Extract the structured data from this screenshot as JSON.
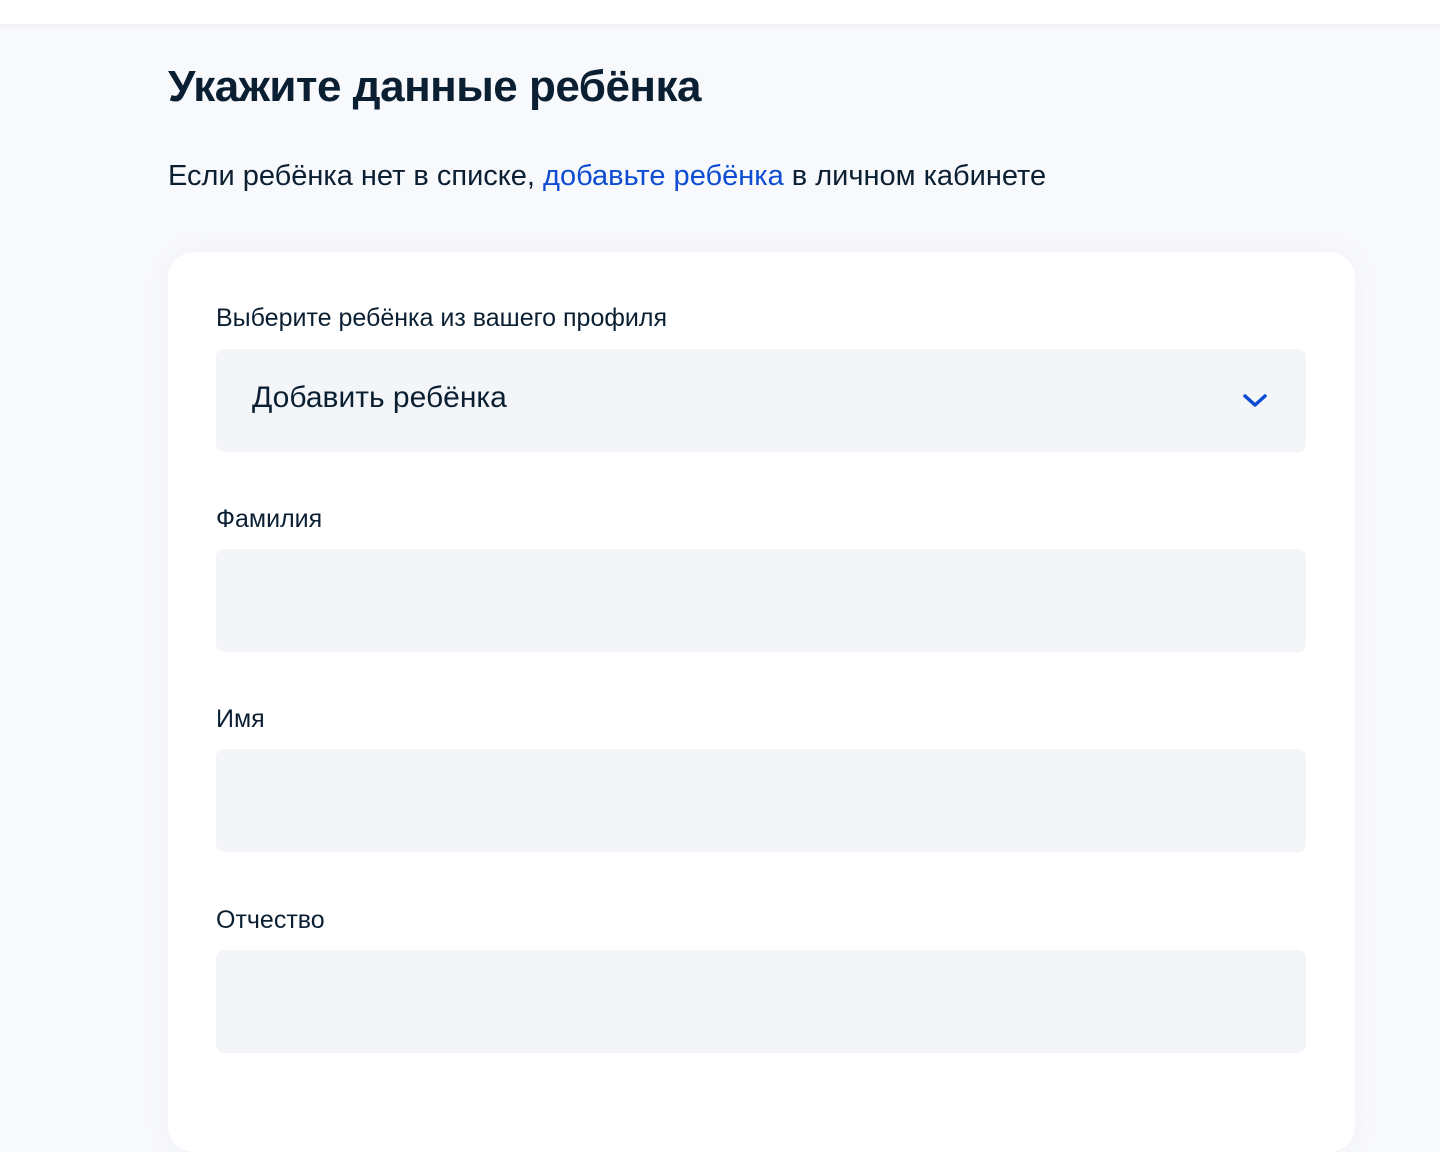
{
  "page": {
    "title": "Укажите данные ребёнка",
    "subtitle_before": "Если ребёнка нет в списке, ",
    "subtitle_link": "добавьте ребёнка",
    "subtitle_after": " в личном кабинете"
  },
  "form": {
    "child_select": {
      "label": "Выберите ребёнка из вашего профиля",
      "value": "Добавить ребёнка",
      "icon": "chevron-down-icon"
    },
    "last_name": {
      "label": "Фамилия",
      "value": ""
    },
    "first_name": {
      "label": "Имя",
      "value": ""
    },
    "patronymic": {
      "label": "Отчество",
      "value": ""
    }
  },
  "colors": {
    "accent": "#0d4cd3",
    "text": "#0b1f33",
    "field_bg": "#f3f5f9",
    "page_bg": "#f8f9fc"
  }
}
